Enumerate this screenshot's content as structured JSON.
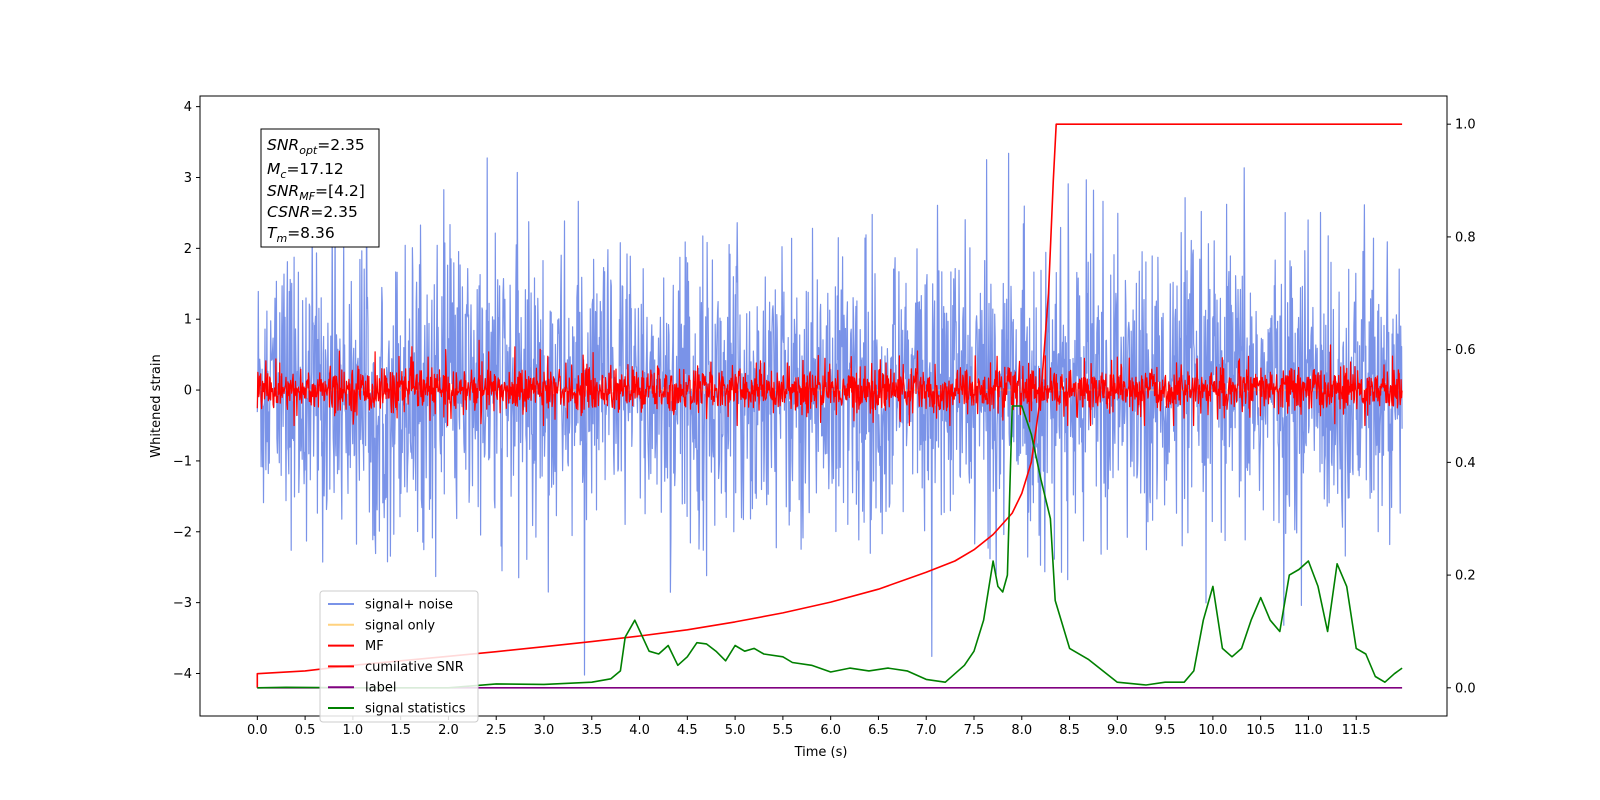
{
  "chart_data": {
    "type": "line",
    "xlabel": "Time (s)",
    "ylabel": "Whitened strain",
    "xlim": [
      -0.6,
      12.45
    ],
    "ylim": [
      -4.6,
      4.15
    ],
    "y2lim": [
      -0.05,
      1.05
    ],
    "x_ticks": [
      "0.0",
      "0.5",
      "1.0",
      "1.5",
      "2.0",
      "2.5",
      "3.0",
      "3.5",
      "4.0",
      "4.5",
      "5.0",
      "5.5",
      "6.0",
      "6.5",
      "7.0",
      "7.5",
      "8.0",
      "8.5",
      "9.0",
      "9.5",
      "10.0",
      "10.5",
      "11.0",
      "11.5"
    ],
    "y_ticks": [
      "4",
      "3",
      "2",
      "1",
      "0",
      "−1",
      "−2",
      "−3",
      "−4"
    ],
    "y2_ticks": [
      "1.0",
      "0.8",
      "0.6",
      "0.4",
      "0.2",
      "0.0"
    ],
    "annotation": {
      "snr_opt": {
        "base": "SNR",
        "sub": "opt",
        "value": "=2.35"
      },
      "mc": {
        "base": "M",
        "sub": "c",
        "value": "=17.12"
      },
      "snr_mf": {
        "base": "SNR",
        "sub": "MF",
        "value": "=[4.2]"
      },
      "csnr": {
        "base": "CSNR",
        "value": "=2.35"
      },
      "tm": {
        "base": "T",
        "sub": "m",
        "value": "=8.36"
      }
    },
    "series": [
      {
        "name": "signal+ noise",
        "color": "#7a93e8",
        "axis": "left",
        "x_range": [
          0,
          11.98
        ],
        "approx_band": [
          -2.5,
          2.5
        ],
        "spike_extremes": [
          -4.15,
          3.8
        ]
      },
      {
        "name": "signal only",
        "color": "#ffd27f",
        "axis": "left",
        "x_range": [
          0,
          11.98
        ],
        "approx_level": 0
      },
      {
        "name": "MF",
        "color": "#ff0000",
        "axis": "left",
        "x_range": [
          0,
          11.98
        ],
        "approx_band": [
          -0.4,
          0.4
        ],
        "spike_extremes": [
          -0.5,
          1.0
        ]
      },
      {
        "name": "cumilative SNR",
        "color": "#ff0000",
        "axis": "right",
        "points": [
          [
            0,
            0.0
          ],
          [
            0,
            0.025
          ],
          [
            0.5,
            0.03
          ],
          [
            1.0,
            0.04
          ],
          [
            1.5,
            0.048
          ],
          [
            2.0,
            0.056
          ],
          [
            2.5,
            0.064
          ],
          [
            3.0,
            0.073
          ],
          [
            3.5,
            0.082
          ],
          [
            4.0,
            0.092
          ],
          [
            4.5,
            0.103
          ],
          [
            5.0,
            0.117
          ],
          [
            5.5,
            0.133
          ],
          [
            6.0,
            0.152
          ],
          [
            6.5,
            0.175
          ],
          [
            7.0,
            0.205
          ],
          [
            7.3,
            0.225
          ],
          [
            7.5,
            0.245
          ],
          [
            7.7,
            0.272
          ],
          [
            7.9,
            0.31
          ],
          [
            8.0,
            0.345
          ],
          [
            8.1,
            0.4
          ],
          [
            8.2,
            0.52
          ],
          [
            8.28,
            0.7
          ],
          [
            8.33,
            0.9
          ],
          [
            8.36,
            1.0
          ],
          [
            11.98,
            1.0
          ]
        ]
      },
      {
        "name": "label",
        "color": "#800080",
        "axis": "right",
        "points": [
          [
            0,
            0.0
          ],
          [
            11.98,
            0.0
          ]
        ]
      },
      {
        "name": "signal statistics",
        "color": "#008000",
        "axis": "right",
        "points": [
          [
            0,
            0.0
          ],
          [
            0.3,
            0.001
          ],
          [
            1.0,
            0.0
          ],
          [
            2.0,
            0.0
          ],
          [
            2.5,
            0.007
          ],
          [
            3.0,
            0.006
          ],
          [
            3.5,
            0.01
          ],
          [
            3.7,
            0.016
          ],
          [
            3.8,
            0.03
          ],
          [
            3.85,
            0.09
          ],
          [
            3.95,
            0.12
          ],
          [
            4.1,
            0.065
          ],
          [
            4.2,
            0.06
          ],
          [
            4.3,
            0.075
          ],
          [
            4.4,
            0.04
          ],
          [
            4.5,
            0.055
          ],
          [
            4.6,
            0.08
          ],
          [
            4.7,
            0.078
          ],
          [
            4.8,
            0.065
          ],
          [
            4.9,
            0.048
          ],
          [
            5.0,
            0.075
          ],
          [
            5.1,
            0.065
          ],
          [
            5.2,
            0.07
          ],
          [
            5.3,
            0.06
          ],
          [
            5.5,
            0.055
          ],
          [
            5.6,
            0.045
          ],
          [
            5.8,
            0.04
          ],
          [
            6.0,
            0.028
          ],
          [
            6.2,
            0.035
          ],
          [
            6.4,
            0.03
          ],
          [
            6.6,
            0.035
          ],
          [
            6.8,
            0.03
          ],
          [
            7.0,
            0.015
          ],
          [
            7.2,
            0.01
          ],
          [
            7.4,
            0.04
          ],
          [
            7.5,
            0.065
          ],
          [
            7.6,
            0.12
          ],
          [
            7.7,
            0.225
          ],
          [
            7.75,
            0.18
          ],
          [
            7.8,
            0.17
          ],
          [
            7.85,
            0.2
          ],
          [
            7.9,
            0.5
          ],
          [
            8.0,
            0.5
          ],
          [
            8.1,
            0.45
          ],
          [
            8.2,
            0.37
          ],
          [
            8.3,
            0.3
          ],
          [
            8.35,
            0.155
          ],
          [
            8.5,
            0.07
          ],
          [
            8.7,
            0.05
          ],
          [
            9.0,
            0.01
          ],
          [
            9.3,
            0.005
          ],
          [
            9.5,
            0.01
          ],
          [
            9.7,
            0.01
          ],
          [
            9.8,
            0.03
          ],
          [
            9.9,
            0.12
          ],
          [
            10.0,
            0.18
          ],
          [
            10.1,
            0.07
          ],
          [
            10.2,
            0.055
          ],
          [
            10.3,
            0.07
          ],
          [
            10.4,
            0.12
          ],
          [
            10.5,
            0.16
          ],
          [
            10.6,
            0.12
          ],
          [
            10.7,
            0.1
          ],
          [
            10.8,
            0.2
          ],
          [
            10.9,
            0.21
          ],
          [
            11.0,
            0.225
          ],
          [
            11.1,
            0.18
          ],
          [
            11.2,
            0.1
          ],
          [
            11.3,
            0.22
          ],
          [
            11.4,
            0.18
          ],
          [
            11.5,
            0.07
          ],
          [
            11.6,
            0.06
          ],
          [
            11.7,
            0.02
          ],
          [
            11.8,
            0.01
          ],
          [
            11.9,
            0.025
          ],
          [
            11.98,
            0.035
          ]
        ]
      }
    ],
    "legend": {
      "placement": "lower-left"
    }
  }
}
